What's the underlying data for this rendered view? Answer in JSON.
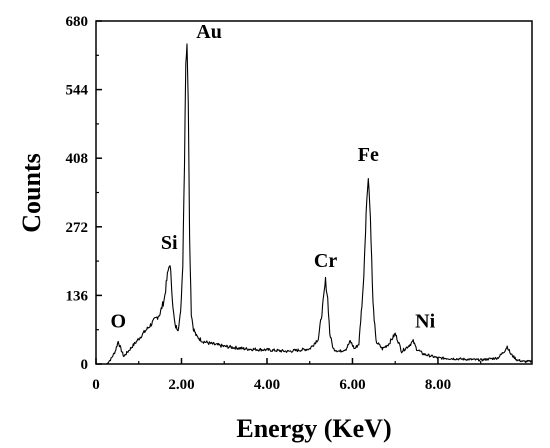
{
  "chart_data": {
    "type": "line",
    "title": "",
    "xlabel": "Energy (KeV)",
    "ylabel": "Counts",
    "xlim": [
      0,
      10.2
    ],
    "ylim": [
      0,
      680
    ],
    "x_ticks": [
      0,
      2.0,
      4.0,
      6.0,
      8.0
    ],
    "x_tick_labels": [
      "0",
      "2.00",
      "4.00",
      "6.00",
      "8.00"
    ],
    "y_ticks": [
      0,
      136,
      272,
      408,
      544,
      680
    ],
    "y_tick_labels": [
      "0",
      "136",
      "272",
      "408",
      "544",
      "680"
    ],
    "grid": false,
    "legend": "none",
    "series": [
      {
        "color": "#000000",
        "x": [
          0.25,
          0.35,
          0.45,
          0.52,
          0.58,
          0.65,
          0.75,
          0.9,
          1.05,
          1.2,
          1.35,
          1.5,
          1.6,
          1.67,
          1.72,
          1.76,
          1.8,
          1.85,
          1.92,
          1.98,
          2.03,
          2.07,
          2.1,
          2.13,
          2.16,
          2.19,
          2.23,
          2.28,
          2.35,
          2.5,
          2.7,
          3.0,
          3.5,
          4.0,
          4.5,
          5.0,
          5.2,
          5.3,
          5.37,
          5.42,
          5.47,
          5.55,
          5.7,
          5.85,
          5.95,
          6.05,
          6.15,
          6.25,
          6.32,
          6.37,
          6.42,
          6.48,
          6.55,
          6.7,
          6.85,
          7.0,
          7.07,
          7.15,
          7.3,
          7.42,
          7.5,
          7.65,
          8.0,
          8.5,
          9.0,
          9.4,
          9.55,
          9.62,
          9.7,
          9.85,
          10.0,
          10.2
        ],
        "y": [
          0,
          10,
          25,
          45,
          30,
          15,
          25,
          40,
          55,
          70,
          85,
          100,
          130,
          175,
          200,
          170,
          110,
          75,
          70,
          100,
          200,
          400,
          600,
          630,
          520,
          250,
          100,
          70,
          55,
          45,
          40,
          35,
          30,
          28,
          25,
          30,
          50,
          110,
          165,
          130,
          60,
          30,
          25,
          30,
          45,
          30,
          40,
          150,
          300,
          375,
          290,
          120,
          45,
          30,
          40,
          60,
          45,
          25,
          35,
          45,
          30,
          20,
          12,
          10,
          8,
          12,
          25,
          35,
          20,
          8,
          5,
          5
        ]
      }
    ],
    "annotations": [
      {
        "text": "O",
        "x": 0.52,
        "y": 45
      },
      {
        "text": "Si",
        "x": 1.76,
        "y": 200
      },
      {
        "text": "Au",
        "x": 2.13,
        "y": 630
      },
      {
        "text": "Cr",
        "x": 5.37,
        "y": 165
      },
      {
        "text": "Fe",
        "x": 6.37,
        "y": 375
      },
      {
        "text": "Ni",
        "x": 7.42,
        "y": 45
      }
    ]
  }
}
